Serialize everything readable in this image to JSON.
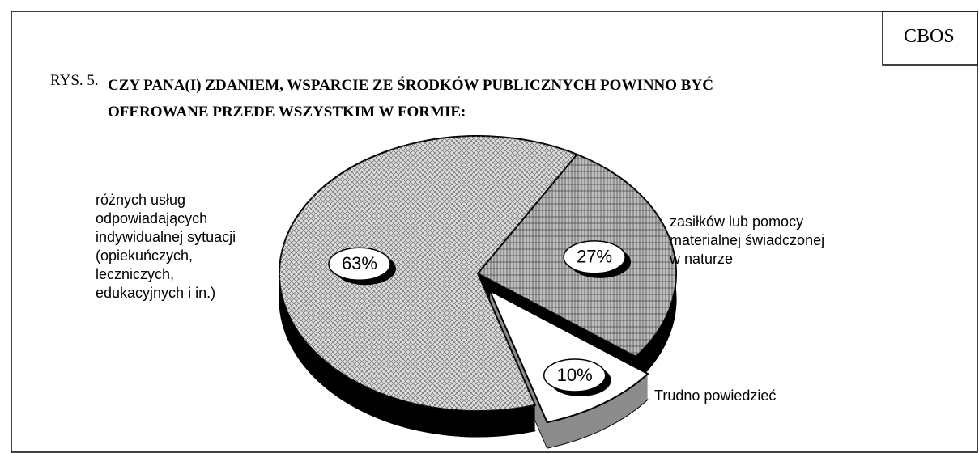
{
  "chart_data": {
    "type": "pie",
    "source": "CBOS",
    "figure_label": "RYS. 5.",
    "title": "CZY PANA(I) ZDANIEM, WSPARCIE ZE ŚRODKÓW PUBLICZNYCH POWINNO BYĆ\nOFEROWANE PRZEDE WSZYSTKIM W FORMIE:",
    "categories": [
      "zasiłków lub  pomocy\nmaterialnej świadczonej\nw naturze",
      "Trudno powiedzieć",
      "różnych usług\nodpowiadających\nindywidualnej sytuacji\n(opiekuńczych,\nleczniczych,\nedukacyjnych i in.)"
    ],
    "values": [
      27,
      10,
      63
    ],
    "value_labels": [
      "27%",
      "10%",
      "63%"
    ],
    "colors": [
      "#bdbdbd",
      "#ffffff",
      "#dcdcdc"
    ],
    "side_colors": [
      "#000000",
      "#8c8c8c",
      "#000000"
    ],
    "exploded": [
      false,
      true,
      false
    ]
  }
}
